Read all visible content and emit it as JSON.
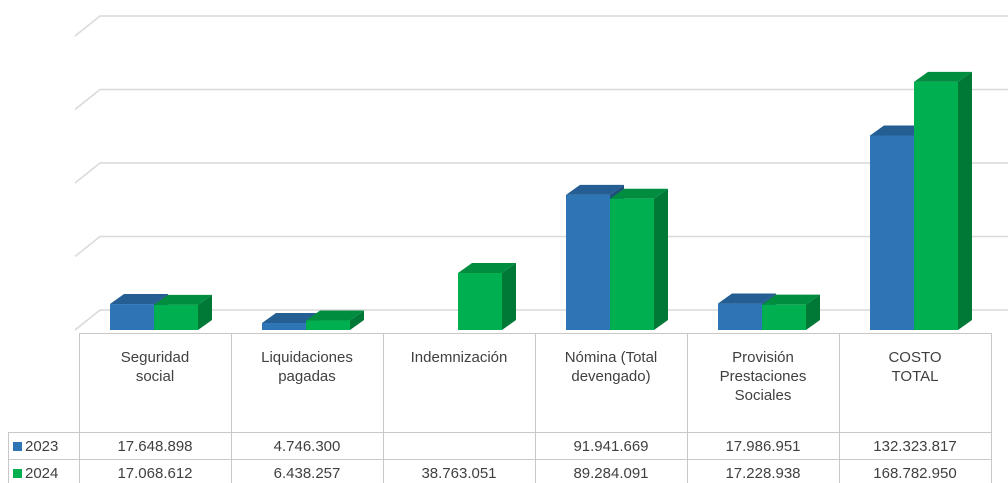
{
  "chart_data": {
    "type": "bar3d",
    "categories": [
      "Seguridad social",
      "Liquidaciones pagadas",
      "Indemnización",
      "Nómina (Total devengado)",
      "Provisión Prestaciones Sociales",
      "COSTO TOTAL"
    ],
    "series": [
      {
        "name": "2023",
        "color": "#2e75b6",
        "values": [
          17648898,
          4746300,
          null,
          91941669,
          17986951,
          132323817
        ],
        "value_labels": [
          "17.648.898",
          "4.746.300",
          null,
          "91.941.669",
          "17.986.951",
          "132.323.817"
        ]
      },
      {
        "name": "2024",
        "color": "#00b050",
        "values": [
          17068612,
          6438257,
          38763051,
          89284091,
          17228938,
          168782950
        ],
        "value_labels": [
          "17.068.612",
          "6.438.257",
          "38.763.051",
          "89.284.091",
          "17.228.938",
          "168.782.950"
        ]
      }
    ],
    "ylim": [
      0,
      200000000
    ],
    "yticks": [
      0,
      50000000,
      100000000,
      150000000,
      200000000
    ],
    "grid": true
  }
}
